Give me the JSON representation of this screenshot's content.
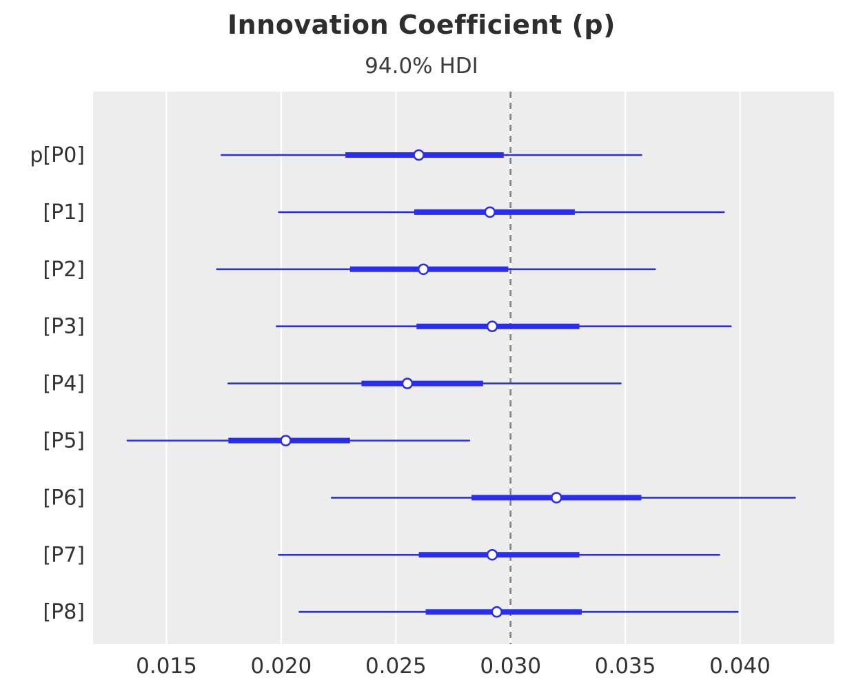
{
  "chart": {
    "title": "Innovation Coefficient (p)",
    "subtitle": "94.0% HDI"
  },
  "chart_data": {
    "type": "forest",
    "title": "Innovation Coefficient (p)",
    "subtitle": "94.0% HDI",
    "xlabel": "",
    "ylabel": "",
    "xlim": [
      0.0118,
      0.0441
    ],
    "x_ticks": [
      0.015,
      0.02,
      0.025,
      0.03,
      0.035,
      0.04
    ],
    "x_tick_labels": [
      "0.015",
      "0.020",
      "0.025",
      "0.030",
      "0.035",
      "0.040"
    ],
    "ref_line": 0.03,
    "grid": "vertical-white-lines-on-gray",
    "legend_position": "none",
    "rows": [
      {
        "label": "p[P0]",
        "hdi_low": 0.0174,
        "hdi_high": 0.0357,
        "quartile_low": 0.0228,
        "quartile_high": 0.0297,
        "median": 0.026
      },
      {
        "label": "[P1]",
        "hdi_low": 0.0199,
        "hdi_high": 0.0393,
        "quartile_low": 0.0258,
        "quartile_high": 0.0328,
        "median": 0.0291
      },
      {
        "label": "[P2]",
        "hdi_low": 0.0172,
        "hdi_high": 0.0363,
        "quartile_low": 0.023,
        "quartile_high": 0.0299,
        "median": 0.0262
      },
      {
        "label": "[P3]",
        "hdi_low": 0.0198,
        "hdi_high": 0.0396,
        "quartile_low": 0.0259,
        "quartile_high": 0.033,
        "median": 0.0292
      },
      {
        "label": "[P4]",
        "hdi_low": 0.0177,
        "hdi_high": 0.0348,
        "quartile_low": 0.0235,
        "quartile_high": 0.0288,
        "median": 0.0255
      },
      {
        "label": "[P5]",
        "hdi_low": 0.0133,
        "hdi_high": 0.0282,
        "quartile_low": 0.0177,
        "quartile_high": 0.023,
        "median": 0.0202
      },
      {
        "label": "[P6]",
        "hdi_low": 0.0222,
        "hdi_high": 0.0424,
        "quartile_low": 0.0283,
        "quartile_high": 0.0357,
        "median": 0.032
      },
      {
        "label": "[P7]",
        "hdi_low": 0.0199,
        "hdi_high": 0.0391,
        "quartile_low": 0.026,
        "quartile_high": 0.033,
        "median": 0.0292
      },
      {
        "label": "[P8]",
        "hdi_low": 0.0208,
        "hdi_high": 0.0399,
        "quartile_low": 0.0263,
        "quartile_high": 0.0331,
        "median": 0.0294
      }
    ],
    "colors": {
      "interval_line": "#2a2eec",
      "marker_fill": "#ffffff",
      "marker_edge": "#2a2eec",
      "ref_line": "#7f7f7f",
      "plot_background": "#ededed",
      "gridline": "#ffffff",
      "text": "#323232"
    }
  }
}
